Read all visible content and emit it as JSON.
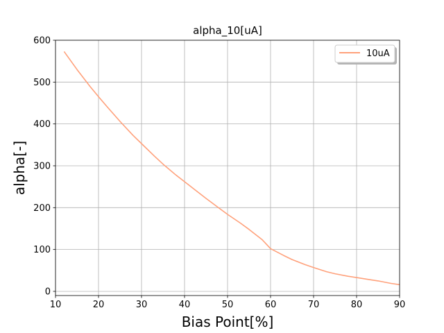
{
  "chart_data": {
    "type": "line",
    "title": "alpha_10[uA]",
    "xlabel": "Bias Point[%]",
    "ylabel": "alpha[-]",
    "xlim": [
      10,
      90
    ],
    "ylim": [
      -10,
      600
    ],
    "xticks": [
      10,
      20,
      30,
      40,
      50,
      60,
      70,
      80,
      90
    ],
    "yticks": [
      0,
      100,
      200,
      300,
      400,
      500,
      600
    ],
    "grid": true,
    "legend_position": "top-right",
    "series": [
      {
        "name": "10uA",
        "color": "#ffa07a",
        "x": [
          12,
          15,
          18,
          20,
          22,
          25,
          28,
          30,
          33,
          35,
          38,
          40,
          43,
          45,
          48,
          50,
          53,
          55,
          58,
          60,
          63,
          65,
          68,
          70,
          73,
          75,
          78,
          80,
          83,
          85,
          88,
          90
        ],
        "y": [
          573,
          530,
          490,
          465,
          441,
          406,
          373,
          353,
          323,
          304,
          278,
          262,
          238,
          222,
          199,
          184,
          163,
          148,
          124,
          102,
          86,
          76,
          64,
          57,
          47,
          42,
          36,
          33,
          28,
          25,
          19,
          16
        ]
      }
    ]
  }
}
